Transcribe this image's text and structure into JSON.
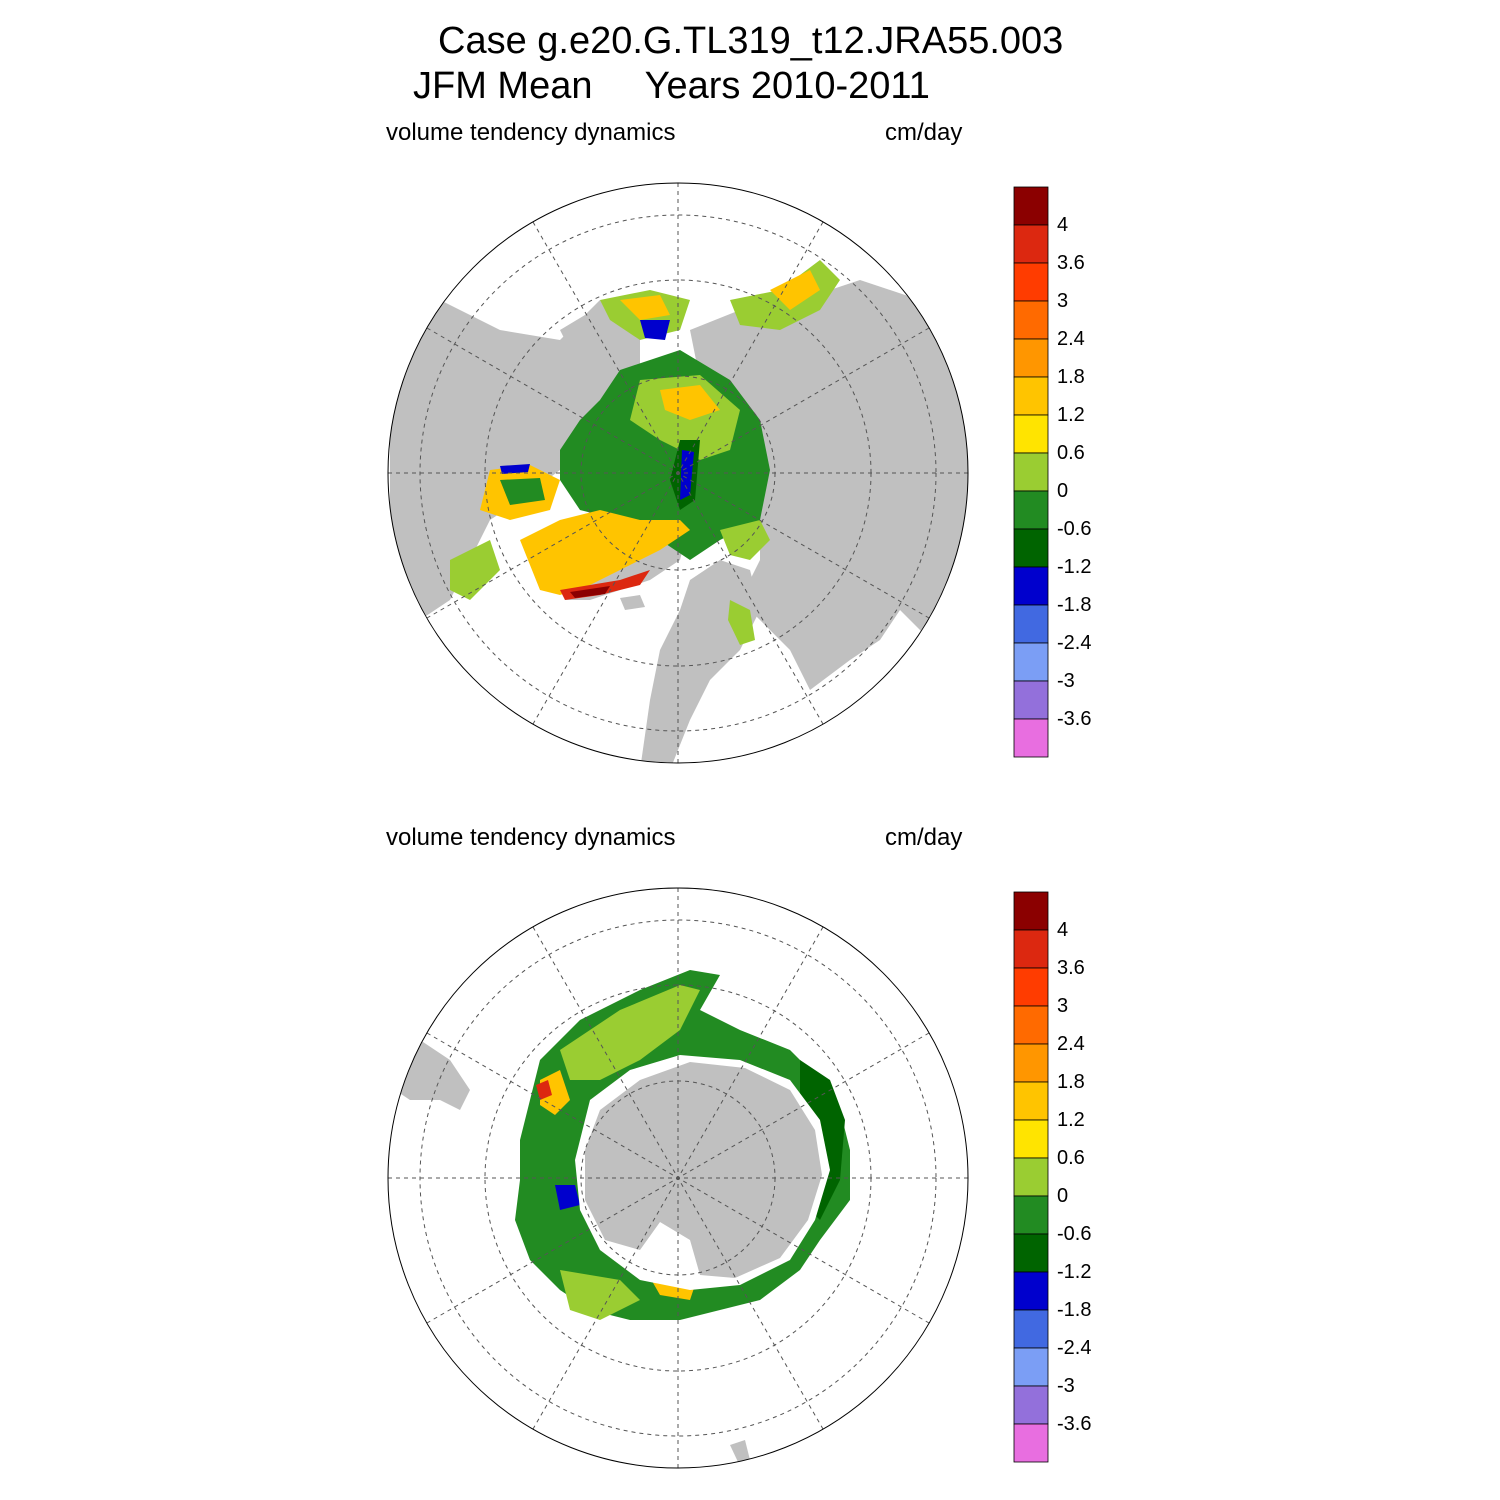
{
  "title": {
    "line1": "Case g.e20.G.TL319_t12.JRA55.003",
    "line2": "JFM Mean     Years 2010-2011"
  },
  "panels": [
    {
      "id": "north",
      "left_label": "volume tendency dynamics",
      "right_label": "cm/day"
    },
    {
      "id": "south",
      "left_label": "volume tendency dynamics",
      "right_label": "cm/day"
    }
  ],
  "colorbar": {
    "labels": [
      "4",
      "3.6",
      "3",
      "2.4",
      "1.8",
      "1.2",
      "0.6",
      "0",
      "-0.6",
      "-1.2",
      "-1.8",
      "-2.4",
      "-3",
      "-3.6"
    ],
    "colors": [
      "#8b0000",
      "#dc2810",
      "#ff3c00",
      "#ff6a00",
      "#ff9600",
      "#ffc400",
      "#ffe400",
      "#9acd32",
      "#228b22",
      "#006400",
      "#0000cd",
      "#4169e1",
      "#7b9ef5",
      "#9370db",
      "#e86ee0"
    ]
  },
  "map_colors": {
    "land": "#c0c0c0",
    "ocean": "#ffffff"
  }
}
